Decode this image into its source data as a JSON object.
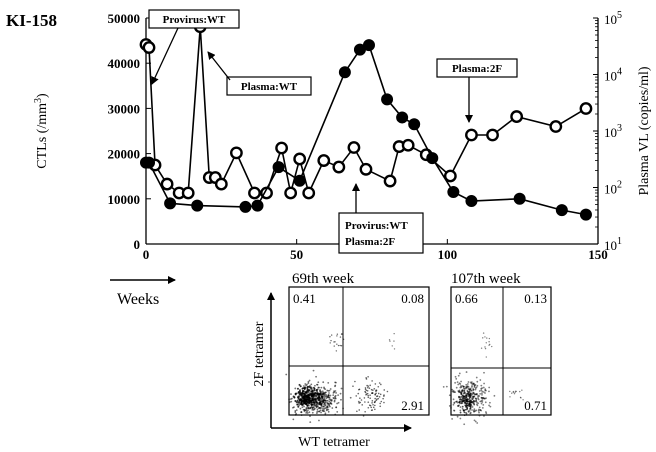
{
  "panel_label": "KI-158",
  "chart_data": {
    "type": "line",
    "x_unit_label": "Weeks",
    "xlim": [
      0,
      150
    ],
    "x_ticks": [
      "0",
      "50",
      "100",
      "150"
    ],
    "y_left": {
      "label": "CTLs (/mm3)",
      "label_main": "CTLs (/mm",
      "label_sup": "3",
      "label_tail": ")",
      "lim": [
        0,
        50000
      ],
      "ticks": [
        "0",
        "10000",
        "20000",
        "30000",
        "40000",
        "50000"
      ]
    },
    "y_right": {
      "label": "Plasma VL (copies/ml)",
      "scale": "log",
      "lim": [
        10,
        100000
      ],
      "ticks": [
        {
          "base": "10",
          "exp": "1"
        },
        {
          "base": "10",
          "exp": "2"
        },
        {
          "base": "10",
          "exp": "3"
        },
        {
          "base": "10",
          "exp": "4"
        },
        {
          "base": "10",
          "exp": "5"
        }
      ]
    },
    "series": [
      {
        "marker": "filled-circle",
        "axis": "left",
        "color": "#000000",
        "points": [
          [
            0,
            18000
          ],
          [
            1,
            18000
          ],
          [
            8,
            9000
          ],
          [
            17,
            8500
          ],
          [
            33,
            8200
          ],
          [
            37,
            8500
          ],
          [
            44,
            17000
          ],
          [
            51,
            14000
          ],
          [
            66,
            38000
          ],
          [
            71,
            43000
          ],
          [
            74,
            44000
          ],
          [
            80,
            32000
          ],
          [
            85,
            28000
          ],
          [
            89,
            26500
          ],
          [
            95,
            19000
          ],
          [
            102,
            11500
          ],
          [
            108,
            9500
          ],
          [
            124,
            10000
          ],
          [
            138,
            7500
          ],
          [
            146,
            6500
          ]
        ]
      },
      {
        "marker": "open-circle",
        "axis": "right",
        "color": "#000000",
        "points": [
          [
            0,
            34000
          ],
          [
            1,
            30000
          ],
          [
            3,
            250
          ],
          [
            7,
            115
          ],
          [
            11,
            80
          ],
          [
            14,
            80
          ],
          [
            18,
            70000
          ],
          [
            21,
            150
          ],
          [
            23,
            150
          ],
          [
            25,
            115
          ],
          [
            30,
            410
          ],
          [
            36,
            80
          ],
          [
            40,
            80
          ],
          [
            45,
            500
          ],
          [
            48,
            80
          ],
          [
            51,
            320
          ],
          [
            54,
            80
          ],
          [
            59,
            300
          ],
          [
            64,
            230
          ],
          [
            69,
            510
          ],
          [
            73,
            210
          ],
          [
            81,
            130
          ],
          [
            84,
            530
          ],
          [
            87,
            560
          ],
          [
            93,
            380
          ],
          [
            101,
            160
          ],
          [
            108,
            850
          ],
          [
            115,
            850
          ],
          [
            123,
            1800
          ],
          [
            136,
            1200
          ],
          [
            146,
            2500
          ]
        ]
      }
    ],
    "annotations": [
      {
        "id": "provirus-wt",
        "text": "Provirus:WT"
      },
      {
        "id": "plasma-wt",
        "text": "Plasma:WT"
      },
      {
        "id": "plasma-2f",
        "text": "Plasma:2F"
      },
      {
        "id": "provirus-wt-plasma-2f",
        "lines": [
          "Provirus:WT",
          "Plasma:2F"
        ]
      }
    ],
    "facs_panels": [
      {
        "title": "69th week",
        "quadrants": {
          "upper_left": "0.41",
          "upper_right": "0.08",
          "lower_right": "2.91"
        }
      },
      {
        "title": "107th week",
        "quadrants": {
          "upper_left": "0.66",
          "upper_right": "0.13",
          "lower_right": "0.71"
        }
      }
    ],
    "facs_axes": {
      "x_label": "WT tetramer",
      "y_label": "2F tetramer"
    }
  }
}
